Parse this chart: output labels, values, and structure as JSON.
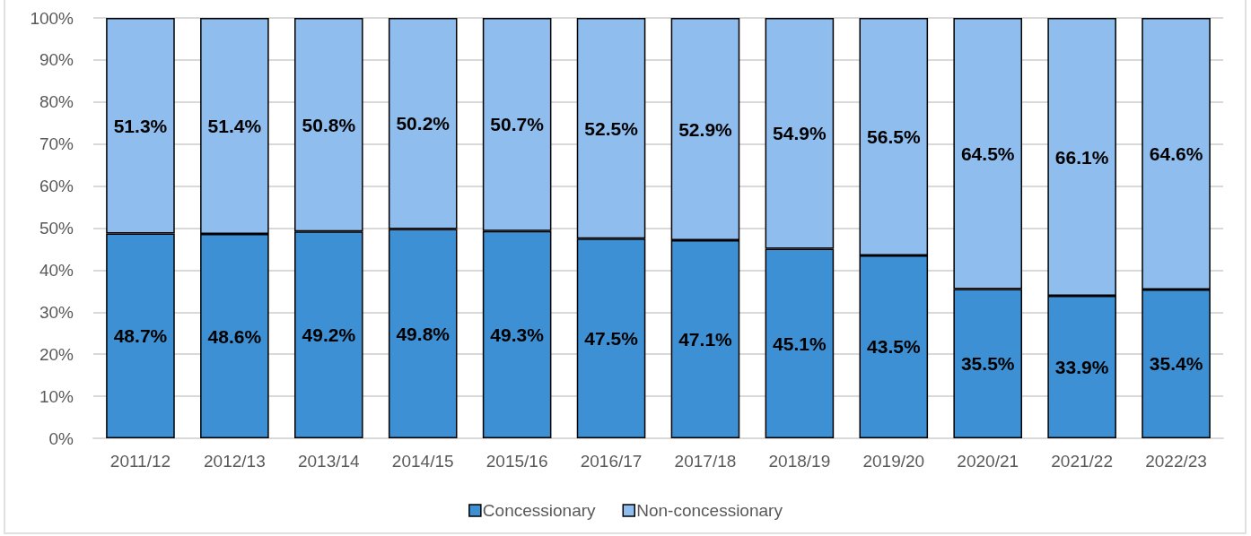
{
  "chart_data": {
    "type": "bar",
    "stacked": true,
    "categories": [
      "2011/12",
      "2012/13",
      "2013/14",
      "2014/15",
      "2015/16",
      "2016/17",
      "2017/18",
      "2018/19",
      "2019/20",
      "2020/21",
      "2021/22",
      "2022/23"
    ],
    "series": [
      {
        "name": "Concessionary",
        "color": "#3d90d3",
        "values": [
          48.7,
          48.6,
          49.2,
          49.8,
          49.3,
          47.5,
          47.1,
          45.1,
          43.5,
          35.5,
          33.9,
          35.4
        ],
        "value_labels": [
          "48.7%",
          "48.6%",
          "49.2%",
          "49.8%",
          "49.3%",
          "47.5%",
          "47.1%",
          "45.1%",
          "43.5%",
          "35.5%",
          "33.9%",
          "35.4%"
        ]
      },
      {
        "name": "Non-concessionary",
        "color": "#8fbdee",
        "values": [
          51.3,
          51.4,
          50.8,
          50.2,
          50.7,
          52.5,
          52.9,
          54.9,
          56.5,
          64.5,
          66.1,
          64.6
        ],
        "value_labels": [
          "51.3%",
          "51.4%",
          "50.8%",
          "50.2%",
          "50.7%",
          "52.5%",
          "52.9%",
          "54.9%",
          "56.5%",
          "64.5%",
          "66.1%",
          "64.6%"
        ]
      }
    ],
    "ylim": [
      0,
      100
    ],
    "yticks": [
      {
        "value": 0,
        "label": "0%"
      },
      {
        "value": 10,
        "label": "10%"
      },
      {
        "value": 20,
        "label": "20%"
      },
      {
        "value": 30,
        "label": "30%"
      },
      {
        "value": 40,
        "label": "40%"
      },
      {
        "value": 50,
        "label": "50%"
      },
      {
        "value": 60,
        "label": "60%"
      },
      {
        "value": 70,
        "label": "70%"
      },
      {
        "value": 80,
        "label": "80%"
      },
      {
        "value": 90,
        "label": "90%"
      },
      {
        "value": 100,
        "label": "100%"
      }
    ],
    "grid": "y",
    "legend": "bottom"
  }
}
